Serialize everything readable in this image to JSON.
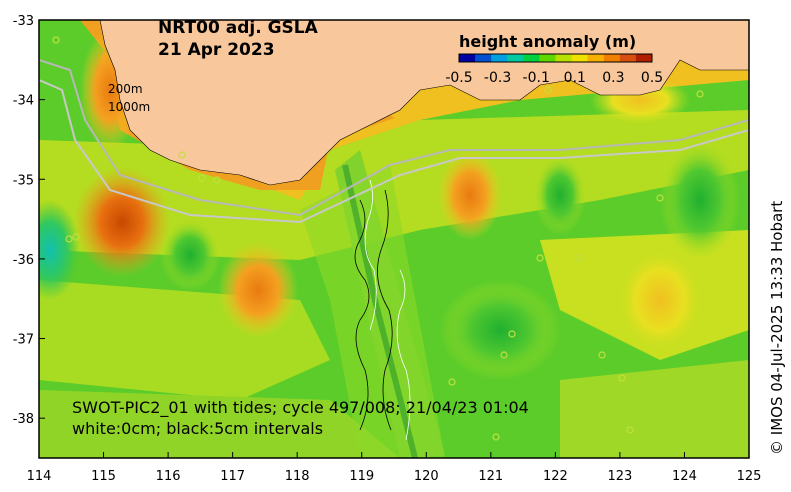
{
  "title": {
    "line1": "NRT00 adj. GSLA",
    "line2": "21 Apr 2023"
  },
  "colorbar": {
    "title": "height anomaly (m)",
    "ticks": [
      "-0.5",
      "-0.3",
      "-0.1",
      "0.1",
      "0.3",
      "0.5"
    ],
    "colors": [
      "#0000a0",
      "#0050d0",
      "#00a0e0",
      "#00c8a0",
      "#00d040",
      "#60d800",
      "#b8e000",
      "#f0e000",
      "#f8b000",
      "#f08000",
      "#d85010",
      "#b02000"
    ]
  },
  "isobaths": {
    "label1": "200m",
    "label2": "1000m"
  },
  "swot": {
    "line1": "SWOT-PIC2_01 with tides; cycle 497/008; 21/04/23 01:04",
    "line2": "white:0cm; black:5cm intervals"
  },
  "credit": "© IMOS 04-Jul-2025 13:33 Hobart",
  "axes": {
    "x_ticks": [
      "114",
      "115",
      "116",
      "117",
      "118",
      "119",
      "120",
      "121",
      "122",
      "123",
      "124",
      "125"
    ],
    "y_ticks": [
      "-33",
      "-34",
      "-35",
      "-36",
      "-37",
      "-38"
    ],
    "lon_range": [
      114,
      125
    ],
    "lat_range": [
      -38.5,
      -33
    ]
  }
}
